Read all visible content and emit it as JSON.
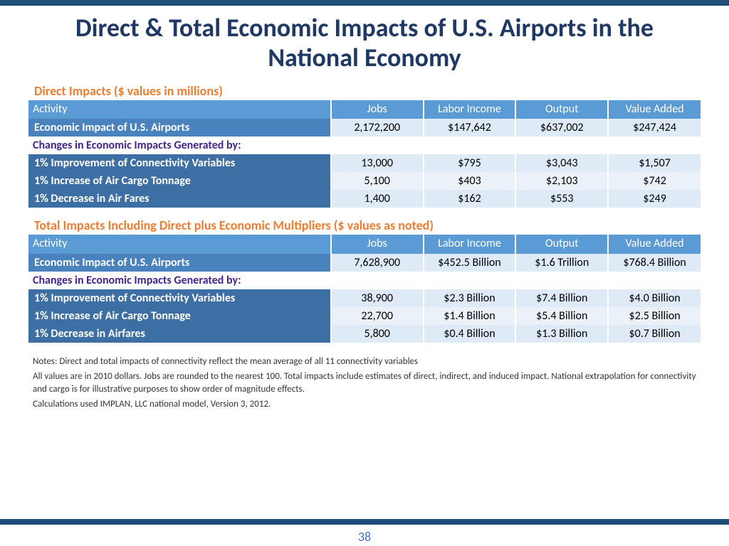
{
  "title": "Direct & Total Economic Impacts of U.S. Airports in the National Economy",
  "pagenum": "38",
  "colors": {
    "brand": "#1f4e79",
    "title": "#1f3864",
    "accent": "#ed7d31",
    "th_bg": "#5b9bd5",
    "row_dark": "#4a82bd",
    "row_alt_label": "#3d6fa5",
    "row_light": "#deeaf6",
    "row_lighter": "#eaf1f9",
    "subheader_text": "#44248c"
  },
  "columns": [
    "Activity",
    "Jobs",
    "Labor Income",
    "Output",
    "Value Added"
  ],
  "direct": {
    "caption": "Direct Impacts ($ values in millions)",
    "main_row": {
      "label": "Economic Impact of U.S. Airports",
      "jobs": "2,172,200",
      "labor": "$147,642",
      "output": "$637,002",
      "va": "$247,424"
    },
    "subheader": "Changes in Economic Impacts Generated by:",
    "rows": [
      {
        "label": "1% Improvement of Connectivity Variables",
        "jobs": "13,000",
        "labor": "$795",
        "output": "$3,043",
        "va": "$1,507"
      },
      {
        "label": "1% Increase of Air Cargo Tonnage",
        "jobs": "5,100",
        "labor": "$403",
        "output": "$2,103",
        "va": "$742"
      },
      {
        "label": "1% Decrease in Air Fares",
        "jobs": "1,400",
        "labor": "$162",
        "output": "$553",
        "va": "$249"
      }
    ]
  },
  "total": {
    "caption": "Total Impacts Including Direct plus Economic Multipliers ($ values as noted)",
    "main_row": {
      "label": "Economic Impact of U.S. Airports",
      "jobs": "7,628,900",
      "labor": "$452.5 Billion",
      "output": "$1.6 Trillion",
      "va": "$768.4 Billion"
    },
    "subheader": "Changes in Economic Impacts Generated by:",
    "rows": [
      {
        "label": "1% Improvement of Connectivity Variables",
        "jobs": "38,900",
        "labor": "$2.3 Billion",
        "output": "$7.4 Billion",
        "va": "$4.0 Billion"
      },
      {
        "label": "1% Increase of Air Cargo Tonnage",
        "jobs": "22,700",
        "labor": "$1.4 Billion",
        "output": "$5.4 Billion",
        "va": "$2.5 Billion"
      },
      {
        "label": "1% Decrease in Airfares",
        "jobs": "5,800",
        "labor": "$0.4 Billion",
        "output": "$1.3 Billion",
        "va": "$0.7 Billion"
      }
    ]
  },
  "notes": [
    "Notes: Direct and total impacts of connectivity reflect the mean average of all 11 connectivity variables",
    "All values are in 2010 dollars.  Jobs are rounded to the nearest 100.  Total impacts include estimates of direct, indirect, and induced impact. National extrapolation for connectivity and cargo is for illustrative purposes to show order of magnitude effects.",
    "Calculations used IMPLAN, LLC national model, Version 3, 2012."
  ]
}
